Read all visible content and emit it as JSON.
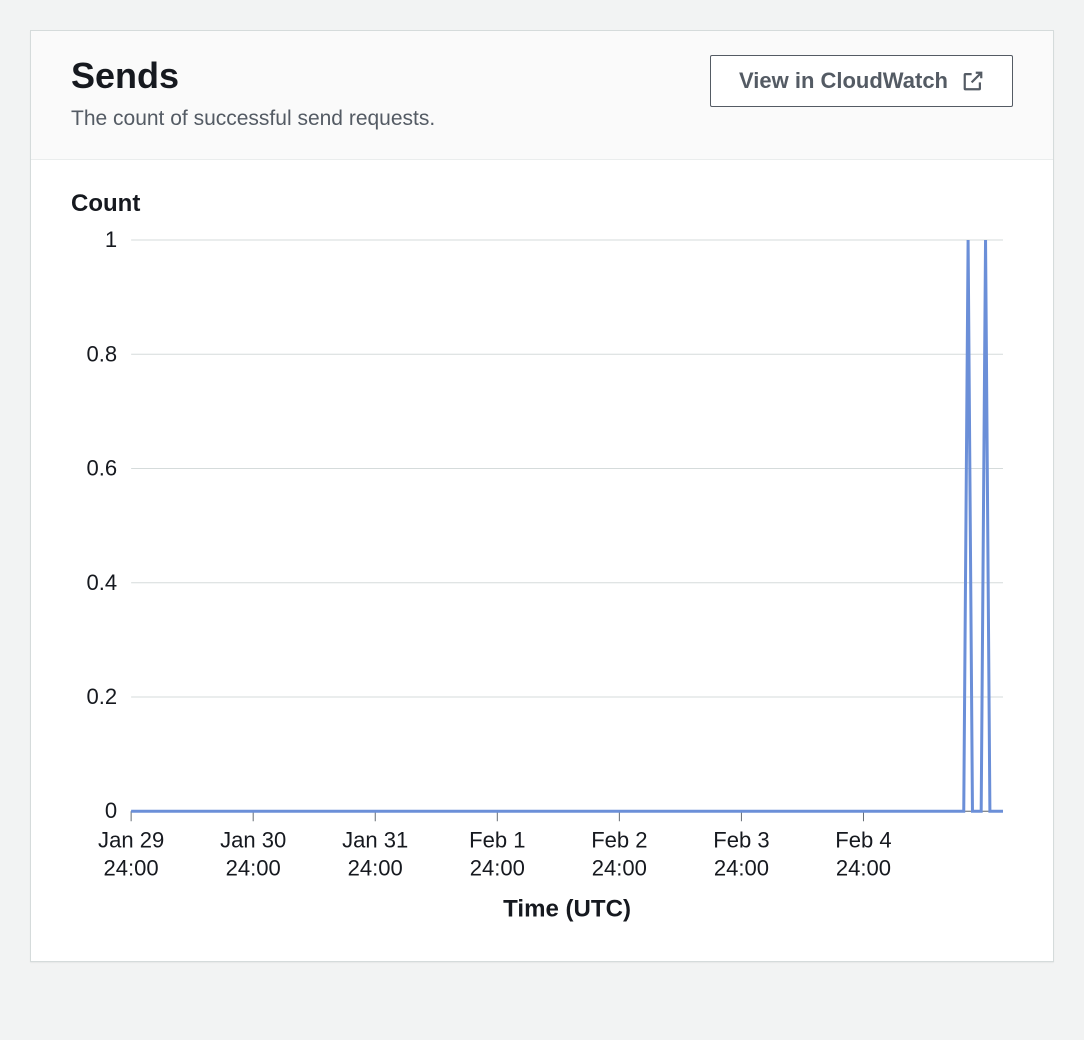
{
  "header": {
    "title": "Sends",
    "subtitle": "The count of successful send requests.",
    "view_button_label": "View in CloudWatch"
  },
  "chart": {
    "type": "line",
    "y_axis_title": "Count",
    "x_axis_title": "Time (UTC)",
    "line_color": "#6b8fd8",
    "line_width": 3,
    "background_color": "#ffffff",
    "grid_color": "#d5dbdb",
    "axis_color": "#646b73",
    "tick_font_size": 22,
    "axis_title_font_size": 24,
    "ylim": [
      0,
      1
    ],
    "ytick_step": 0.2,
    "y_ticks": [
      0,
      0.2,
      0.4,
      0.6,
      0.8,
      1
    ],
    "x_ticks": [
      {
        "pos": 0,
        "line1": "Jan 29",
        "line2": "24:00"
      },
      {
        "pos": 0.14,
        "line1": "Jan 30",
        "line2": "24:00"
      },
      {
        "pos": 0.28,
        "line1": "Jan 31",
        "line2": "24:00"
      },
      {
        "pos": 0.42,
        "line1": "Feb 1",
        "line2": "24:00"
      },
      {
        "pos": 0.56,
        "line1": "Feb 2",
        "line2": "24:00"
      },
      {
        "pos": 0.7,
        "line1": "Feb 3",
        "line2": "24:00"
      },
      {
        "pos": 0.84,
        "line1": "Feb 4",
        "line2": "24:00"
      }
    ],
    "series": [
      {
        "x": 0.0,
        "y": 0
      },
      {
        "x": 0.955,
        "y": 0
      },
      {
        "x": 0.96,
        "y": 1
      },
      {
        "x": 0.965,
        "y": 0
      },
      {
        "x": 0.975,
        "y": 0
      },
      {
        "x": 0.98,
        "y": 1
      },
      {
        "x": 0.985,
        "y": 0
      },
      {
        "x": 1.0,
        "y": 0
      }
    ]
  }
}
